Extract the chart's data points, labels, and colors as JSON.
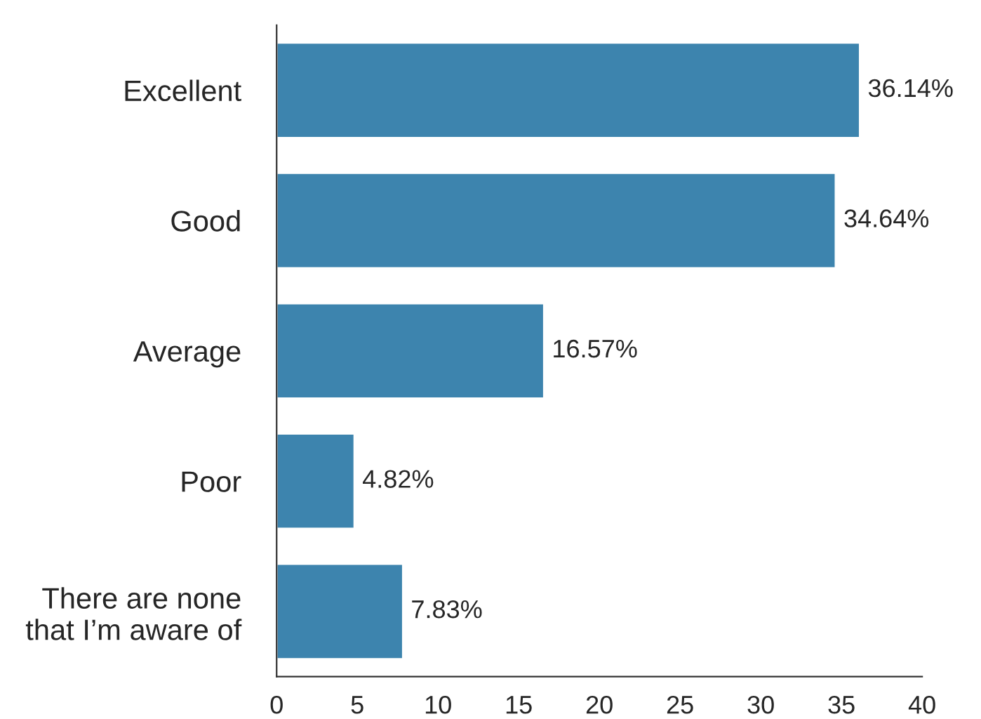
{
  "chart_data": {
    "type": "bar",
    "orientation": "horizontal",
    "categories": [
      "Excellent",
      "Good",
      "Average",
      "Poor",
      "There are none\nthat I’m aware of"
    ],
    "values": [
      36.14,
      34.64,
      16.57,
      4.82,
      7.83
    ],
    "value_labels": [
      "36.14%",
      "34.64%",
      "16.57%",
      "4.82%",
      "7.83%"
    ],
    "color": "#3d84ae",
    "xlim": [
      0,
      40
    ],
    "xticks": [
      0,
      5,
      10,
      15,
      20,
      25,
      30,
      35,
      40
    ],
    "grid": false,
    "legend": false
  }
}
